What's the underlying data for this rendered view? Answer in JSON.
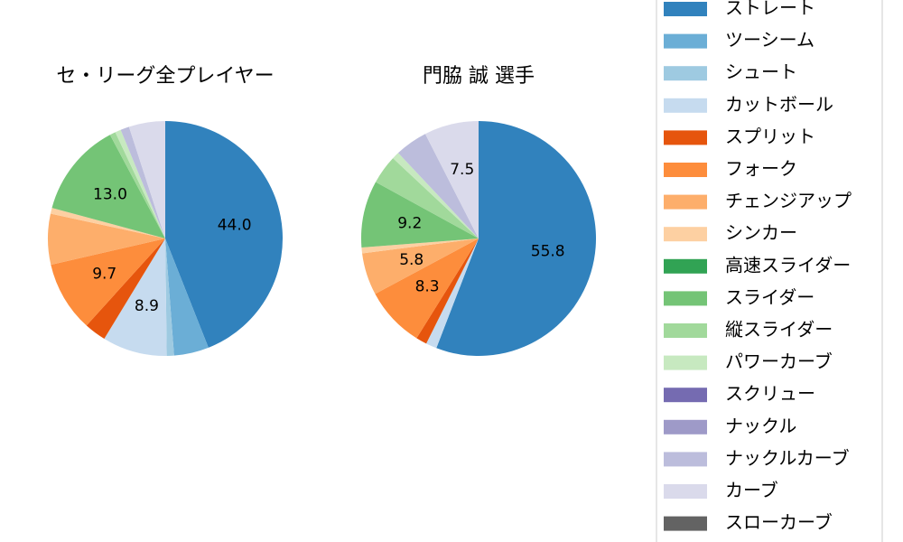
{
  "chart_data": [
    {
      "type": "pie",
      "title": "セ・リーグ全プレイヤー",
      "values": [
        44.0,
        4.8,
        1.0,
        8.9,
        3.0,
        9.7,
        7.0,
        0.8,
        0,
        13.0,
        0.8,
        0.8,
        0,
        0,
        1.2,
        5.0,
        0
      ],
      "value_labels": [
        "44.0",
        null,
        null,
        "8.9",
        null,
        "9.7",
        null,
        null,
        null,
        "13.0",
        null,
        null,
        null,
        null,
        null,
        null,
        null
      ]
    },
    {
      "type": "pie",
      "title": "門脇 誠  選手",
      "values": [
        55.8,
        0,
        0,
        1.5,
        1.5,
        8.3,
        5.8,
        0.8,
        0,
        9.2,
        4.0,
        1.0,
        0,
        0,
        4.5,
        7.5,
        0
      ],
      "value_labels": [
        "55.8",
        null,
        null,
        null,
        null,
        "8.3",
        "5.8",
        null,
        null,
        "9.2",
        null,
        null,
        null,
        null,
        null,
        "7.5",
        null
      ]
    }
  ],
  "legend": {
    "labels": [
      "ストレート",
      "ツーシーム",
      "シュート",
      "カットボール",
      "スプリット",
      "フォーク",
      "チェンジアップ",
      "シンカー",
      "高速スライダー",
      "スライダー",
      "縦スライダー",
      "パワーカーブ",
      "スクリュー",
      "ナックル",
      "ナックルカーブ",
      "カーブ",
      "スローカーブ"
    ],
    "colors": [
      "#3182bd",
      "#6baed6",
      "#9ecae1",
      "#c6dbef",
      "#e6550d",
      "#fd8d3c",
      "#fdae6b",
      "#fdd0a2",
      "#31a354",
      "#74c476",
      "#a1d99b",
      "#c7e9c0",
      "#756bb1",
      "#9e9ac8",
      "#bcbddc",
      "#dadaeb",
      "#636363"
    ]
  }
}
